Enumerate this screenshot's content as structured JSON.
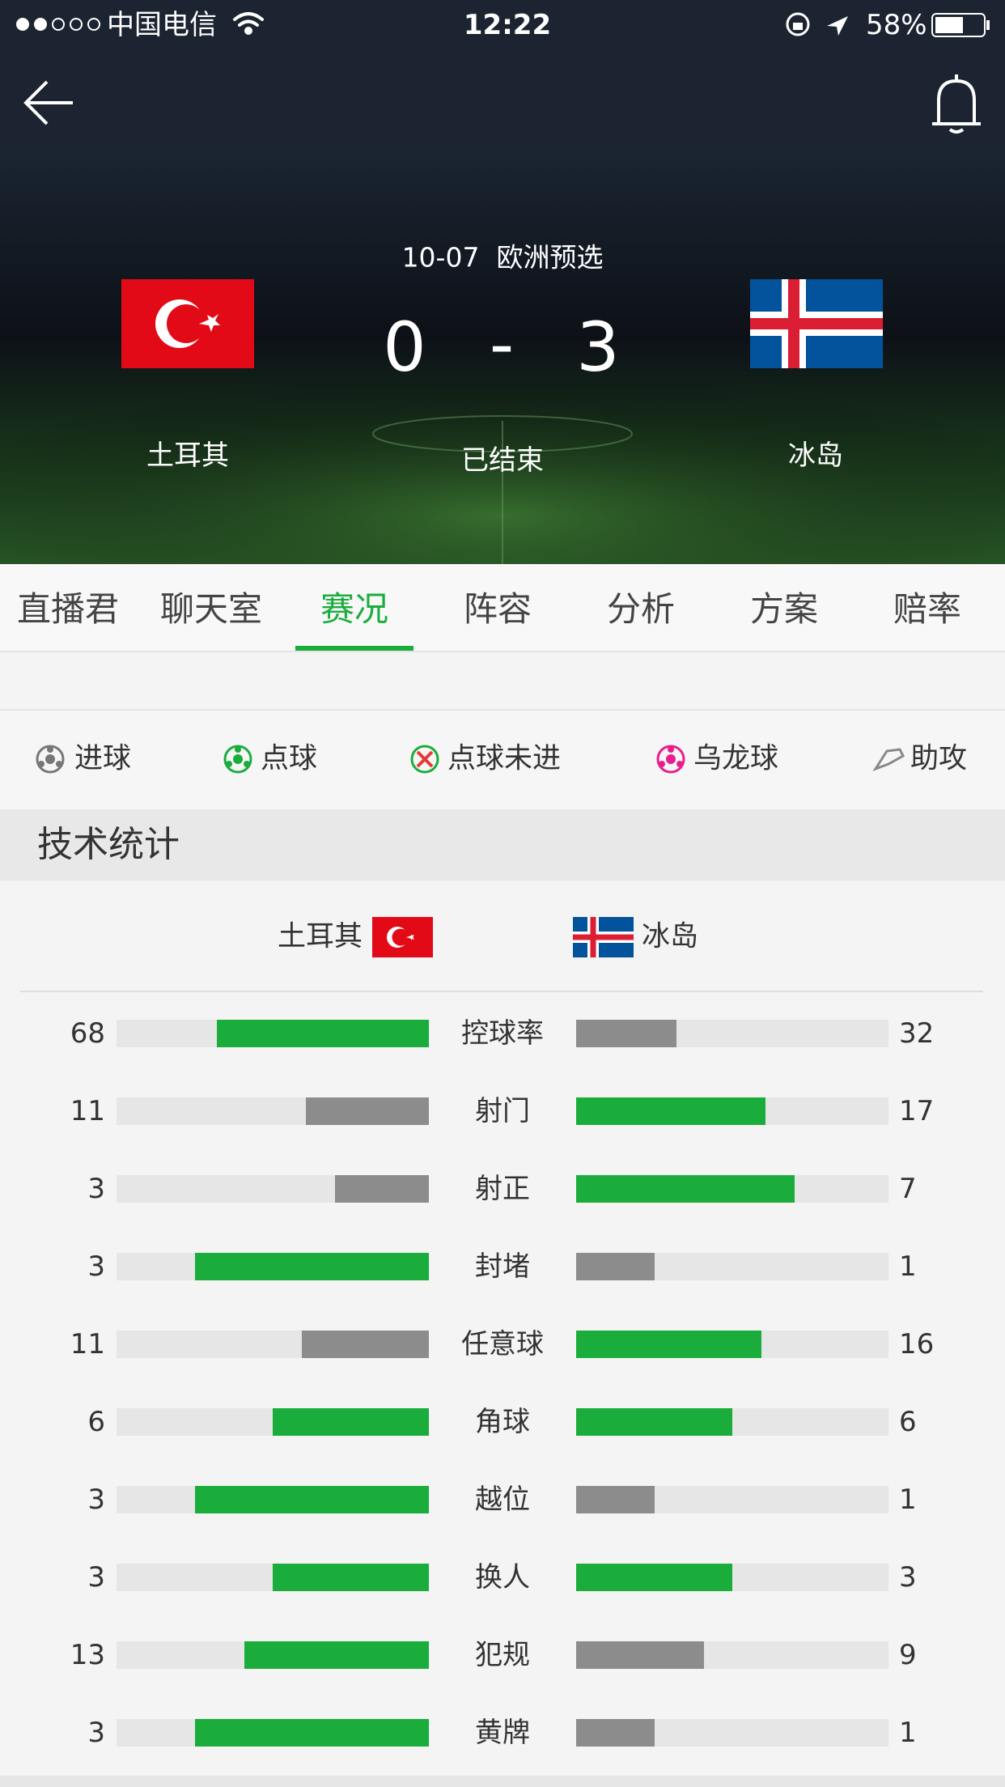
{
  "status_bar": {
    "carrier": "中国电信",
    "time": "12:22",
    "battery": "58%"
  },
  "match": {
    "date": "10-07",
    "competition": "欧洲预选",
    "home_team": "土耳其",
    "away_team": "冰岛",
    "home_score": 0,
    "score_separator": "-",
    "away_score": 3,
    "status": "已结束"
  },
  "tabs": [
    "直播君",
    "聊天室",
    "赛况",
    "阵容",
    "分析",
    "方案",
    "赔率"
  ],
  "active_tab": 2,
  "legend": [
    "进球",
    "点球",
    "点球未进",
    "乌龙球",
    "助攻"
  ],
  "stats": {
    "title": "技术统计",
    "lead_color": "#1aad3c",
    "trail_color": "#8c8c8c",
    "rows": [
      {
        "label": "控球率",
        "home": 68,
        "away": 32
      },
      {
        "label": "射门",
        "home": 11,
        "away": 17
      },
      {
        "label": "射正",
        "home": 3,
        "away": 7
      },
      {
        "label": "封堵",
        "home": 3,
        "away": 1
      },
      {
        "label": "任意球",
        "home": 11,
        "away": 16
      },
      {
        "label": "角球",
        "home": 6,
        "away": 6
      },
      {
        "label": "越位",
        "home": 3,
        "away": 1
      },
      {
        "label": "换人",
        "home": 3,
        "away": 3
      },
      {
        "label": "犯规",
        "home": 13,
        "away": 9
      },
      {
        "label": "黄牌",
        "home": 3,
        "away": 1
      }
    ]
  }
}
